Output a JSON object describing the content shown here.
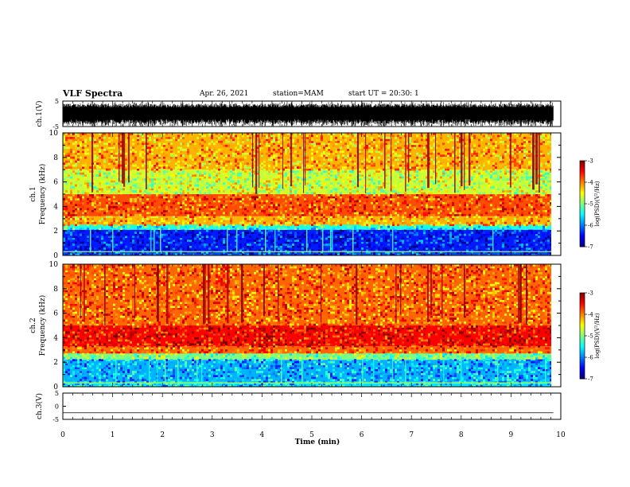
{
  "header": {
    "title": "VLF Spectra",
    "date": "Apr. 26, 2021",
    "station": "station=MAM",
    "start": "start UT =   20:30: 1"
  },
  "chart_data": [
    {
      "type": "line",
      "name": "ch1-waveform",
      "ylabel": "ch.1(V)",
      "ylim": [
        -5,
        5
      ],
      "yticks": [
        "5",
        "-5"
      ],
      "xlim": [
        0,
        10
      ],
      "signal": "dense noise, amplitude about +/-3 V, to 9.85 min"
    },
    {
      "type": "heatmap",
      "name": "ch1-spectrogram",
      "ylabel": "ch.1 Frequency (kHz)",
      "ylim": [
        0,
        10
      ],
      "yticks": [
        "0",
        "2",
        "4",
        "6",
        "8",
        "10"
      ],
      "xlim": [
        0,
        9.85
      ],
      "bands": [
        {
          "from": 0,
          "to": 0.3,
          "level": -6.2
        },
        {
          "from": 0.3,
          "to": 2.1,
          "level": -6.4
        },
        {
          "from": 2.1,
          "to": 2.5,
          "level": -5.4
        },
        {
          "from": 2.5,
          "to": 3.2,
          "level": -4.2
        },
        {
          "from": 3.2,
          "to": 5.0,
          "level": -3.8
        },
        {
          "from": 5.0,
          "to": 7.0,
          "level": -4.7
        },
        {
          "from": 7.0,
          "to": 10,
          "level": -4.2
        }
      ],
      "colorbar": {
        "label": "log(PSD)(V²/Hz)",
        "range": [
          -7,
          -3
        ],
        "ticks": [
          "-3",
          "-4",
          "-5",
          "-6",
          "-7"
        ]
      }
    },
    {
      "type": "heatmap",
      "name": "ch2-spectrogram",
      "ylabel": "ch.2 Frequency (kHz)",
      "ylim": [
        0,
        10
      ],
      "yticks": [
        "0",
        "2",
        "4",
        "6",
        "8",
        "10"
      ],
      "xlim": [
        0,
        9.85
      ],
      "bands": [
        {
          "from": 0,
          "to": 0.4,
          "level": -5.6
        },
        {
          "from": 0.4,
          "to": 2.2,
          "level": -5.8
        },
        {
          "from": 2.2,
          "to": 2.7,
          "level": -5.0
        },
        {
          "from": 2.7,
          "to": 3.3,
          "level": -3.9
        },
        {
          "from": 3.3,
          "to": 5.0,
          "level": -3.5
        },
        {
          "from": 5.0,
          "to": 10,
          "level": -3.9
        }
      ],
      "colorbar": {
        "label": "log(PSD)(V²/Hz)",
        "range": [
          -7,
          -3
        ],
        "ticks": [
          "-3",
          "-4",
          "-5",
          "-6",
          "-7"
        ]
      }
    },
    {
      "type": "line",
      "name": "ch3-waveform",
      "ylabel": "ch.3(V)",
      "ylim": [
        -5,
        5
      ],
      "yticks": [
        "5",
        "0",
        "-5"
      ],
      "xlim": [
        0,
        10
      ],
      "signal": "flat line near -2.5 V"
    }
  ],
  "xaxis": {
    "label": "Time (min)",
    "ticks": [
      "0",
      "1",
      "2",
      "3",
      "4",
      "5",
      "6",
      "7",
      "8",
      "9",
      "10"
    ],
    "range": [
      0,
      10
    ]
  }
}
